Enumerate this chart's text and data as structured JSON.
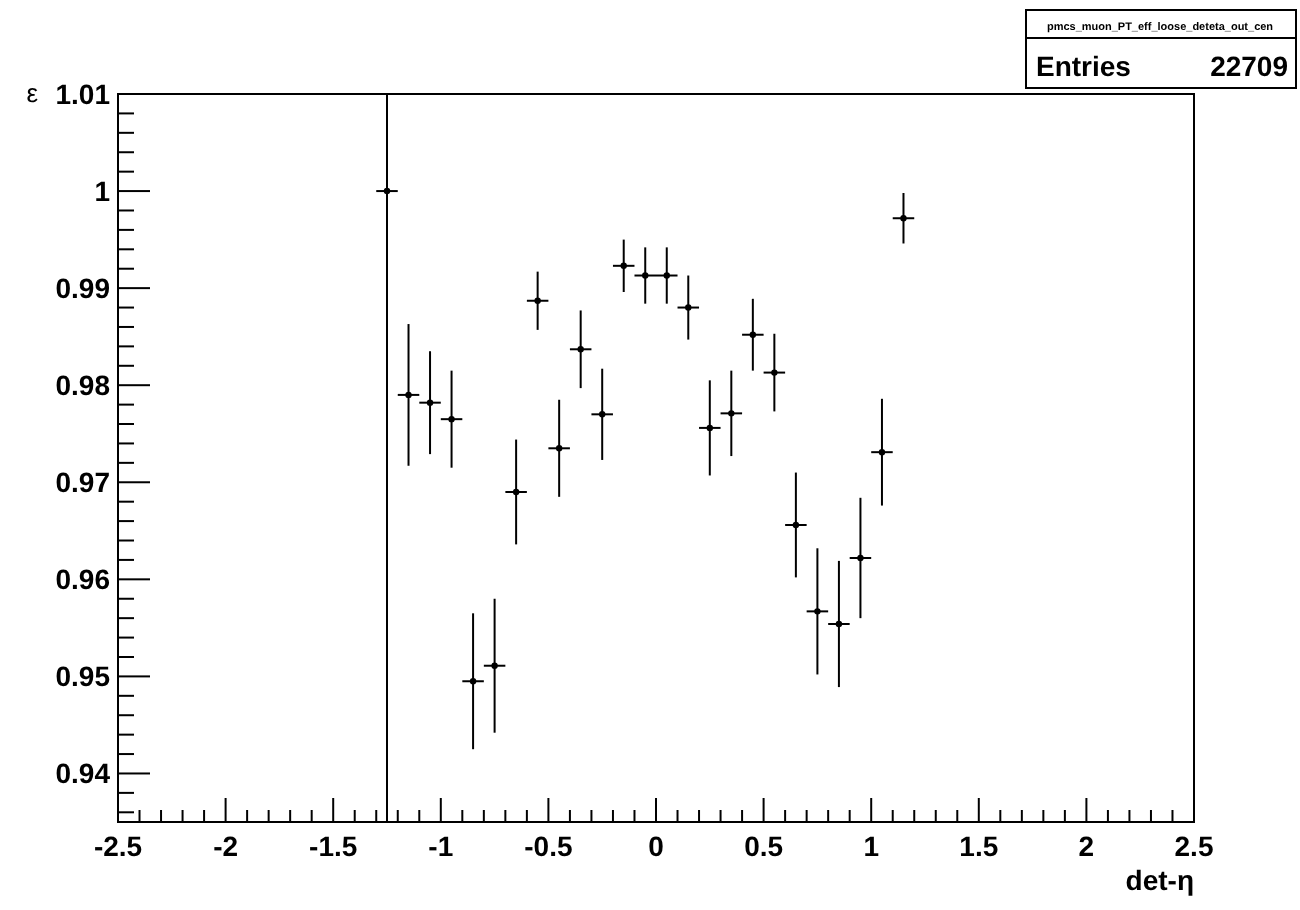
{
  "chart_data": {
    "type": "scatter",
    "title": "pmcs_muon_PT_eff_loose_deteta_out_cen",
    "xlabel": "det-η",
    "ylabel": "ε",
    "annotations": [
      "Entries 22709"
    ],
    "marker": "circle",
    "grid": false,
    "x": [
      -1.25,
      -1.15,
      -1.05,
      -0.95,
      -0.85,
      -0.75,
      -0.65,
      -0.55,
      -0.45,
      -0.35,
      -0.25,
      -0.15,
      -0.05,
      0.05,
      0.15,
      0.25,
      0.35,
      0.45,
      0.55,
      0.65,
      0.75,
      0.85,
      0.95,
      1.05,
      1.15
    ],
    "values": [
      1.0,
      0.979,
      0.9782,
      0.9765,
      0.9495,
      0.9511,
      0.969,
      0.9887,
      0.9735,
      0.9837,
      0.977,
      0.9923,
      0.9913,
      0.9913,
      0.988,
      0.9756,
      0.9771,
      0.9852,
      0.9813,
      0.9656,
      0.9567,
      0.9554,
      0.9622,
      0.9731,
      0.9972
    ],
    "errors": [
      [
        0.935,
        1.01
      ],
      0.0073,
      0.0053,
      0.005,
      0.007,
      0.0069,
      0.0054,
      0.003,
      0.005,
      0.004,
      0.0047,
      0.0027,
      0.0029,
      0.0029,
      0.0033,
      0.0049,
      0.0044,
      0.0037,
      0.004,
      0.0054,
      0.0065,
      0.0065,
      0.0062,
      0.0055,
      0.0026
    ],
    "xerrors": [
      0.05,
      0.05,
      0.05,
      0.05,
      0.05,
      0.05,
      0.05,
      0.05,
      0.05,
      0.05,
      0.05,
      0.05,
      0.05,
      0.05,
      0.05,
      0.05,
      0.05,
      0.05,
      0.05,
      0.05,
      0.05,
      0.05,
      0.05,
      0.05,
      0.05
    ],
    "color": "#000000",
    "xlim": [
      -2.5,
      2.5
    ],
    "xticks": [
      -2.5,
      {
        "value": -2.4,
        "label": null
      },
      {
        "value": -2.3,
        "label": null
      },
      {
        "value": -2.2,
        "label": null
      },
      {
        "value": -2.1,
        "label": null
      },
      -2,
      {
        "value": -1.9,
        "label": null
      },
      {
        "value": -1.8,
        "label": null
      },
      {
        "value": -1.7,
        "label": null
      },
      {
        "value": -1.6,
        "label": null
      },
      -1.5,
      {
        "value": -1.4,
        "label": null
      },
      {
        "value": -1.3,
        "label": null
      },
      {
        "value": -1.2,
        "label": null
      },
      {
        "value": -1.1,
        "label": null
      },
      -1,
      {
        "value": -0.9,
        "label": null
      },
      {
        "value": -0.8,
        "label": null
      },
      {
        "value": -0.7,
        "label": null
      },
      {
        "value": -0.6,
        "label": null
      },
      -0.5,
      {
        "value": -0.4,
        "label": null
      },
      {
        "value": -0.3,
        "label": null
      },
      {
        "value": -0.2,
        "label": null
      },
      {
        "value": -0.1,
        "label": null
      },
      0,
      {
        "value": 0.1,
        "label": null
      },
      {
        "value": 0.2,
        "label": null
      },
      {
        "value": 0.3,
        "label": null
      },
      {
        "value": 0.4,
        "label": null
      },
      0.5,
      {
        "value": 0.6,
        "label": null
      },
      {
        "value": 0.7,
        "label": null
      },
      {
        "value": 0.8,
        "label": null
      },
      {
        "value": 0.9,
        "label": null
      },
      1,
      {
        "value": 1.1,
        "label": null
      },
      {
        "value": 1.2,
        "label": null
      },
      {
        "value": 1.3,
        "label": null
      },
      {
        "value": 1.4,
        "label": null
      },
      1.5,
      {
        "value": 1.6,
        "label": null
      },
      {
        "value": 1.7,
        "label": null
      },
      {
        "value": 1.8,
        "label": null
      },
      {
        "value": 1.9,
        "label": null
      },
      2,
      {
        "value": 2.1,
        "label": null
      },
      {
        "value": 2.2,
        "label": null
      },
      {
        "value": 2.3,
        "label": null
      },
      {
        "value": 2.4,
        "label": null
      },
      2.5
    ],
    "ylim": [
      0.935,
      1.01
    ],
    "yticks": [
      {
        "value": 0.936,
        "label": null
      },
      {
        "value": 0.938,
        "label": null
      },
      0.94,
      {
        "value": 0.942,
        "label": null
      },
      {
        "value": 0.944,
        "label": null
      },
      {
        "value": 0.946,
        "label": null
      },
      {
        "value": 0.948,
        "label": null
      },
      0.95,
      {
        "value": 0.952,
        "label": null
      },
      {
        "value": 0.954,
        "label": null
      },
      {
        "value": 0.956,
        "label": null
      },
      {
        "value": 0.958,
        "label": null
      },
      0.96,
      {
        "value": 0.962,
        "label": null
      },
      {
        "value": 0.964,
        "label": null
      },
      {
        "value": 0.966,
        "label": null
      },
      {
        "value": 0.968,
        "label": null
      },
      0.97,
      {
        "value": 0.972,
        "label": null
      },
      {
        "value": 0.974,
        "label": null
      },
      {
        "value": 0.976,
        "label": null
      },
      {
        "value": 0.978,
        "label": null
      },
      0.98,
      {
        "value": 0.982,
        "label": null
      },
      {
        "value": 0.984,
        "label": null
      },
      {
        "value": 0.986,
        "label": null
      },
      {
        "value": 0.988,
        "label": null
      },
      0.99,
      {
        "value": 0.992,
        "label": null
      },
      {
        "value": 0.994,
        "label": null
      },
      {
        "value": 0.996,
        "label": null
      },
      {
        "value": 0.998,
        "label": null
      },
      1,
      {
        "value": 1.002,
        "label": null
      },
      {
        "value": 1.004,
        "label": null
      },
      {
        "value": 1.006,
        "label": null
      },
      {
        "value": 1.008,
        "label": null
      },
      1.01
    ]
  }
}
